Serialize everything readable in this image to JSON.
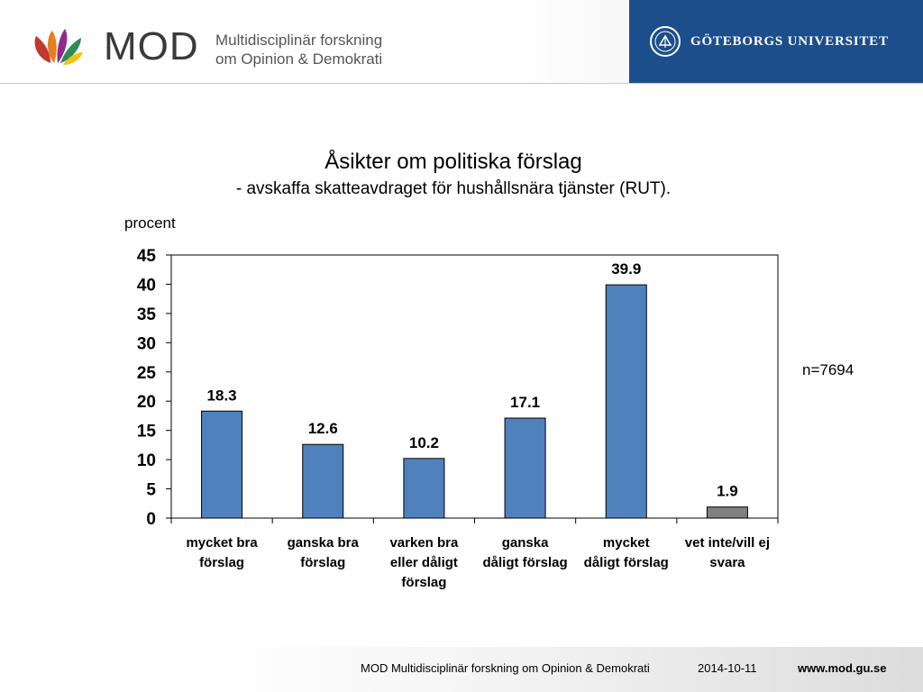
{
  "header": {
    "logo_word": "MOD",
    "logo_sub_line1": "Multidisciplinär forskning",
    "logo_sub_line2": "om Opinion & Demokrati",
    "university": "GÖTEBORGS UNIVERSITET",
    "brand_color": "#1c4e8c"
  },
  "chart_data": {
    "type": "bar",
    "title": "Åsikter om politiska förslag",
    "subtitle": "- avskaffa skatteavdraget för hushållsnära tjänster (RUT).",
    "ylabel": "procent",
    "xlabel": "",
    "ylim": [
      0,
      45
    ],
    "yticks": [
      0,
      5,
      10,
      15,
      20,
      25,
      30,
      35,
      40,
      45
    ],
    "categories": [
      [
        "mycket bra",
        "förslag"
      ],
      [
        "ganska bra",
        "förslag"
      ],
      [
        "varken bra",
        "eller dåligt",
        "förslag"
      ],
      [
        "ganska",
        "dåligt förslag"
      ],
      [
        "mycket",
        "dåligt förslag"
      ],
      [
        "vet inte/vill ej",
        "svara"
      ]
    ],
    "values": [
      18.3,
      12.6,
      10.2,
      17.1,
      39.9,
      1.9
    ],
    "data_labels": [
      "18.3",
      "12.6",
      "10.2",
      "17.1",
      "39.9",
      "1.9"
    ],
    "bar_colors": [
      "#4f81bd",
      "#4f81bd",
      "#4f81bd",
      "#4f81bd",
      "#4f81bd",
      "#808080"
    ],
    "grid": false,
    "annotation": "n=7694"
  },
  "footer": {
    "org": "MOD Multidisciplinär forskning om Opinion & Demokrati",
    "date": "2014-10-11",
    "url": "www.mod.gu.se"
  }
}
